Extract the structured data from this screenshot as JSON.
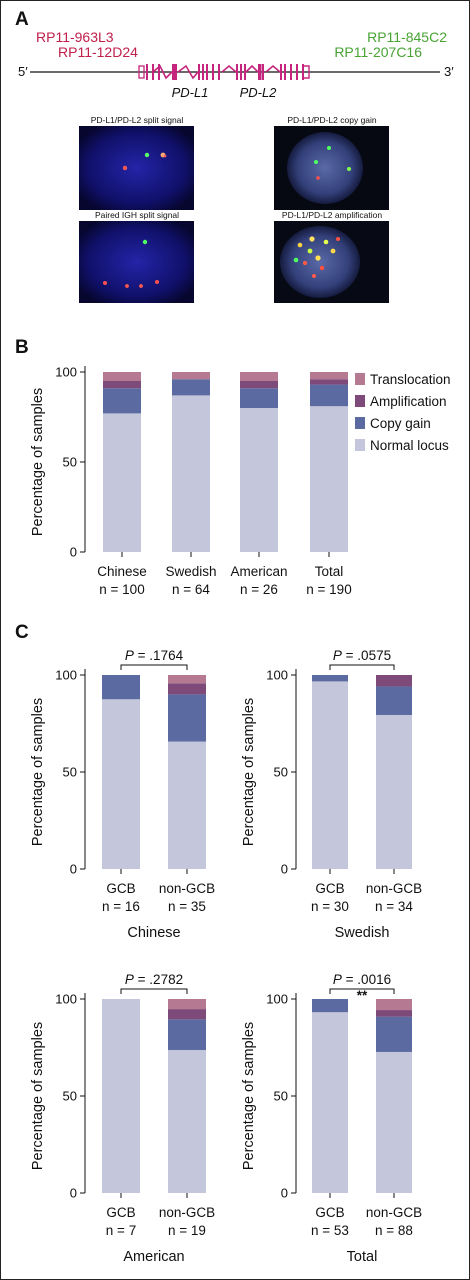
{
  "panel_a": {
    "letter": "A",
    "clones_left": [
      "RP11-963L3",
      "RP11-12D24"
    ],
    "clones_right": [
      "RP11-845C2",
      "RP11-207C16"
    ],
    "end_5": "5′",
    "end_3": "3′",
    "genes": [
      "PD-L1",
      "PD-L2"
    ],
    "micrographs": [
      {
        "label": "PD-L1/PD-L2 split signal"
      },
      {
        "label": "PD-L1/PD-L2 copy gain"
      },
      {
        "label": "Paired IGH split signal"
      },
      {
        "label": "PD-L1/PD-L2 amplification"
      }
    ]
  },
  "panel_b": {
    "letter": "B"
  },
  "panel_c": {
    "letter": "C"
  },
  "colors": {
    "normal": "#c4c6dc",
    "copy_gain": "#5b6aa1",
    "amplification": "#7e4a79",
    "translocation": "#b57991",
    "gene_magenta": "#c5257c"
  },
  "chart_data": [
    {
      "type": "bar",
      "stacked": true,
      "panel": "B",
      "ylabel": "Percentage of samples",
      "ylim": [
        0,
        100
      ],
      "yticks": [
        0,
        50,
        100
      ],
      "categories": [
        "Chinese",
        "Swedish",
        "American",
        "Total"
      ],
      "subtitles": [
        "n = 100",
        "n = 64",
        "n = 26",
        "n = 190"
      ],
      "legend_position": "right",
      "series": [
        {
          "name": "Normal locus",
          "values": [
            77,
            87,
            80,
            81
          ]
        },
        {
          "name": "Copy gain",
          "values": [
            14,
            9,
            11,
            12
          ]
        },
        {
          "name": "Amplification",
          "values": [
            4,
            0,
            4,
            3
          ]
        },
        {
          "name": "Translocation",
          "values": [
            5,
            4,
            5,
            4
          ]
        }
      ],
      "legend_order": [
        "Translocation",
        "Amplification",
        "Copy gain",
        "Normal locus"
      ]
    },
    {
      "type": "bar",
      "stacked": true,
      "panel": "C",
      "group": "Chinese",
      "ylabel": "Percentage of samples",
      "ylim": [
        0,
        100
      ],
      "yticks": [
        0,
        50,
        100
      ],
      "categories": [
        "GCB",
        "non-GCB"
      ],
      "subtitles": [
        "n = 16",
        "n = 35"
      ],
      "pvalue_label": "P",
      "pvalue": "= .1764",
      "significance": "",
      "series": [
        {
          "name": "Normal locus",
          "values": [
            87.5,
            65.7
          ]
        },
        {
          "name": "Copy gain",
          "values": [
            12.5,
            24.3
          ]
        },
        {
          "name": "Amplification",
          "values": [
            0,
            5.7
          ]
        },
        {
          "name": "Translocation",
          "values": [
            0,
            4.3
          ]
        }
      ]
    },
    {
      "type": "bar",
      "stacked": true,
      "panel": "C",
      "group": "Swedish",
      "ylabel": "Percentage of samples",
      "ylim": [
        0,
        100
      ],
      "yticks": [
        0,
        50,
        100
      ],
      "categories": [
        "GCB",
        "non-GCB"
      ],
      "subtitles": [
        "n = 30",
        "n = 34"
      ],
      "pvalue_label": "P",
      "pvalue": "= .0575",
      "significance": "",
      "series": [
        {
          "name": "Normal locus",
          "values": [
            96.7,
            79.4
          ]
        },
        {
          "name": "Copy gain",
          "values": [
            3.3,
            14.7
          ]
        },
        {
          "name": "Amplification",
          "values": [
            0,
            5.9
          ]
        },
        {
          "name": "Translocation",
          "values": [
            0,
            0
          ]
        }
      ]
    },
    {
      "type": "bar",
      "stacked": true,
      "panel": "C",
      "group": "American",
      "ylabel": "Percentage of samples",
      "ylim": [
        0,
        100
      ],
      "yticks": [
        0,
        50,
        100
      ],
      "categories": [
        "GCB",
        "non-GCB"
      ],
      "subtitles": [
        "n = 7",
        "n = 19"
      ],
      "pvalue_label": "P",
      "pvalue": "= .2782",
      "significance": "",
      "series": [
        {
          "name": "Normal locus",
          "values": [
            100,
            73.7
          ]
        },
        {
          "name": "Copy gain",
          "values": [
            0,
            15.8
          ]
        },
        {
          "name": "Amplification",
          "values": [
            0,
            5.3
          ]
        },
        {
          "name": "Translocation",
          "values": [
            0,
            5.2
          ]
        }
      ]
    },
    {
      "type": "bar",
      "stacked": true,
      "panel": "C",
      "group": "Total",
      "ylabel": "Percentage of samples",
      "ylim": [
        0,
        100
      ],
      "yticks": [
        0,
        50,
        100
      ],
      "categories": [
        "GCB",
        "non-GCB"
      ],
      "subtitles": [
        "n = 53",
        "n = 88"
      ],
      "pvalue_label": "P",
      "pvalue": "= .0016",
      "significance": "**",
      "series": [
        {
          "name": "Normal locus",
          "values": [
            93.2,
            72.7
          ]
        },
        {
          "name": "Copy gain",
          "values": [
            6.8,
            18.2
          ]
        },
        {
          "name": "Amplification",
          "values": [
            0,
            3.4
          ]
        },
        {
          "name": "Translocation",
          "values": [
            0,
            5.7
          ]
        }
      ]
    }
  ]
}
